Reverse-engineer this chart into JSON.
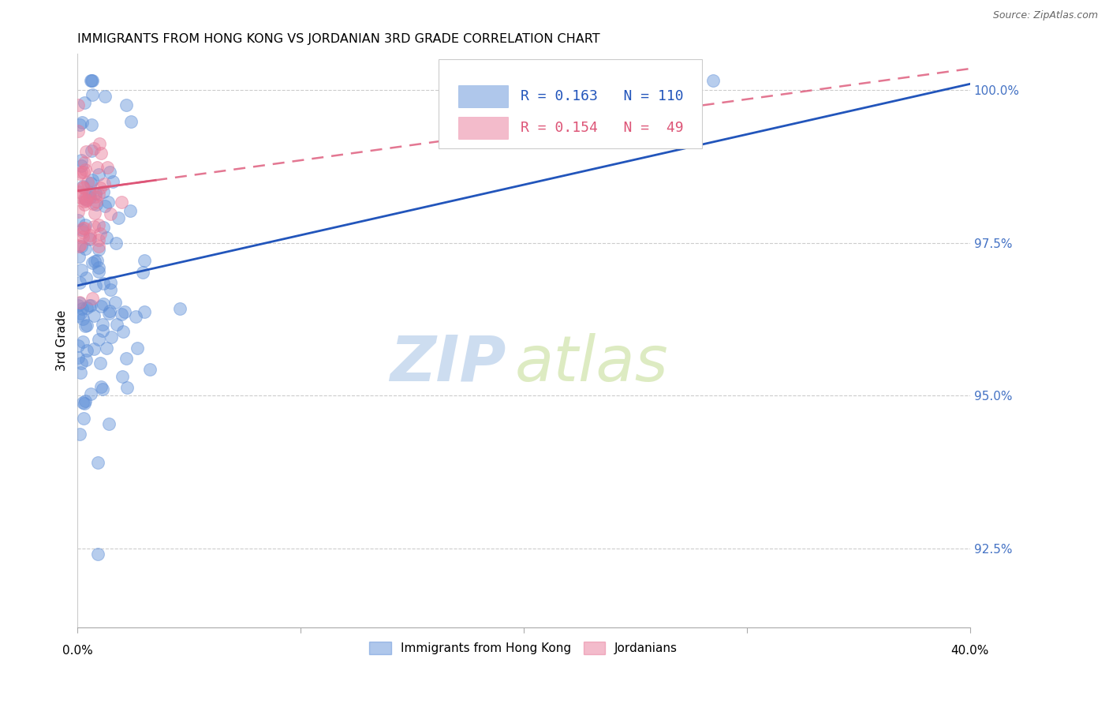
{
  "title": "IMMIGRANTS FROM HONG KONG VS JORDANIAN 3RD GRADE CORRELATION CHART",
  "source": "Source: ZipAtlas.com",
  "ylabel_label": "3rd Grade",
  "xlim": [
    0.0,
    40.0
  ],
  "ylim": [
    91.2,
    100.6
  ],
  "yticks": [
    92.5,
    95.0,
    97.5,
    100.0
  ],
  "ytick_labels": [
    "92.5%",
    "95.0%",
    "97.5%",
    "100.0%"
  ],
  "blue_line_x0": 0.0,
  "blue_line_y0": 96.8,
  "blue_line_x1": 40.0,
  "blue_line_y1": 100.1,
  "pink_line_x0": 0.0,
  "pink_line_y0": 98.35,
  "pink_line_x1": 40.0,
  "pink_line_y1": 100.35,
  "blue_color": "#6090D8",
  "pink_color": "#E87898",
  "blue_line_color": "#2255BB",
  "pink_line_color": "#DD5577",
  "axis_color": "#4472C4",
  "title_fontsize": 11.5,
  "source_fontsize": 9,
  "legend_r1_val": "0.163",
  "legend_n1_val": "110",
  "legend_r2_val": "0.154",
  "legend_n2_val": "49"
}
